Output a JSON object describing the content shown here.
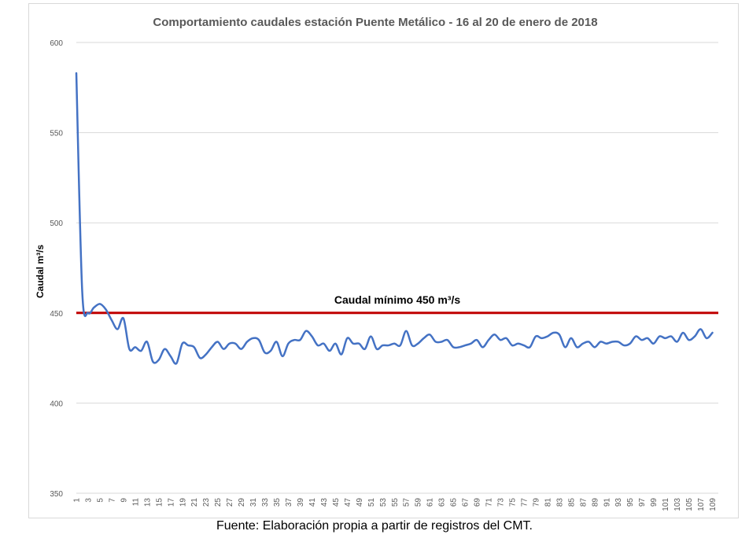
{
  "chart_data": {
    "type": "line",
    "title": "Comportamiento caudales estación Puente Metálico - 16 al 20 de enero de 2018",
    "xlabel": "",
    "ylabel": "Caudal m³/s",
    "ylim": [
      350,
      600
    ],
    "yticks": [
      350,
      400,
      450,
      500,
      550,
      600
    ],
    "xlim": [
      1,
      110
    ],
    "xticks": [
      1,
      3,
      5,
      7,
      9,
      11,
      13,
      15,
      17,
      19,
      21,
      23,
      25,
      27,
      29,
      31,
      33,
      35,
      37,
      39,
      41,
      43,
      45,
      47,
      49,
      51,
      53,
      55,
      57,
      59,
      61,
      63,
      65,
      67,
      69,
      71,
      73,
      75,
      77,
      79,
      81,
      83,
      85,
      87,
      89,
      91,
      93,
      95,
      97,
      99,
      101,
      103,
      105,
      107,
      109
    ],
    "grid": true,
    "legend": "none",
    "series": [
      {
        "color": "#4472c4",
        "values": [
          583,
          462,
          450,
          453,
          455,
          452,
          446,
          441,
          447,
          430,
          431,
          429,
          434,
          423,
          424,
          430,
          426,
          422,
          433,
          432,
          431,
          425,
          427,
          431,
          434,
          430,
          433,
          433,
          430,
          434,
          436,
          435,
          428,
          429,
          434,
          426,
          433,
          435,
          435,
          440,
          437,
          432,
          433,
          429,
          433,
          427,
          436,
          433,
          433,
          430,
          437,
          430,
          432,
          432,
          433,
          432,
          440,
          432,
          433,
          436,
          438,
          434,
          434,
          435,
          431,
          431,
          432,
          433,
          435,
          431,
          435,
          438,
          435,
          436,
          432,
          433,
          432,
          431,
          437,
          436,
          437,
          439,
          438,
          431,
          436,
          431,
          433,
          434,
          431,
          434,
          433,
          434,
          434,
          432,
          433,
          437,
          435,
          436,
          433,
          437,
          436,
          437,
          434,
          439,
          435,
          437,
          441,
          436,
          439
        ]
      }
    ],
    "reference_line": {
      "value": 450,
      "label": "Caudal mínimo 450 m³/s",
      "color": "#c00000"
    }
  },
  "caption": "Fuente: Elaboración propia a partir de registros del CMT."
}
